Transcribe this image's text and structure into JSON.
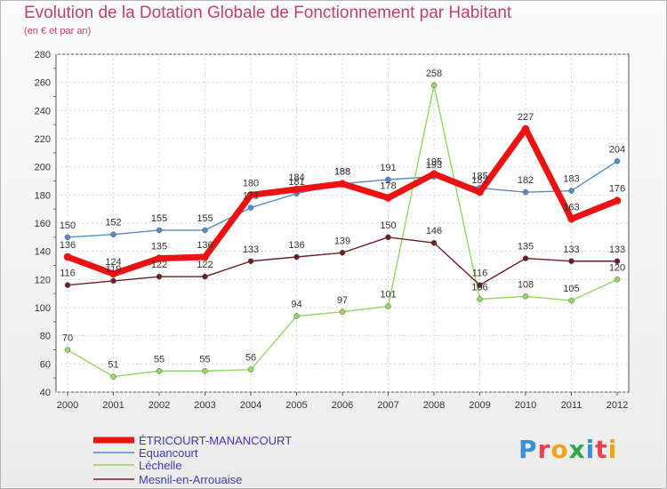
{
  "title": "Evolution de la Dotation Globale de Fonctionnement par Habitant",
  "subtitle": "(en € et par an)",
  "logo": "Proxiti",
  "chart_data": {
    "type": "line",
    "title": "Evolution de la Dotation Globale de Fonctionnement par Habitant",
    "subtitle": "(en € et par an)",
    "xlabel": "",
    "ylabel": "",
    "x": [
      "2000",
      "2001",
      "2002",
      "2003",
      "2004",
      "2005",
      "2006",
      "2007",
      "2008",
      "2009",
      "2010",
      "2011",
      "2012"
    ],
    "ylim": [
      40,
      280
    ],
    "yticks": [
      40,
      60,
      80,
      100,
      120,
      140,
      160,
      180,
      200,
      220,
      240,
      260,
      280
    ],
    "grid": true,
    "legend": "bottom-left",
    "series": [
      {
        "name": "ÉTRICOURT-MANANCOURT",
        "color": "#ee1111",
        "values": [
          136,
          124,
          135,
          136,
          180,
          184,
          188,
          178,
          195,
          182,
          227,
          163,
          176
        ]
      },
      {
        "name": "Equancourt",
        "color": "#4f8dc9",
        "values": [
          150,
          152,
          155,
          155,
          171,
          181,
          188,
          191,
          193,
          185,
          182,
          183,
          204
        ]
      },
      {
        "name": "Léchelle",
        "color": "#93d860",
        "values": [
          70,
          51,
          55,
          55,
          56,
          94,
          97,
          101,
          258,
          106,
          108,
          105,
          120
        ]
      },
      {
        "name": "Mesnil-en-Arrouaise",
        "color": "#6e1e1e",
        "values": [
          116,
          119,
          122,
          122,
          133,
          136,
          139,
          150,
          146,
          116,
          135,
          133,
          133
        ]
      }
    ]
  }
}
